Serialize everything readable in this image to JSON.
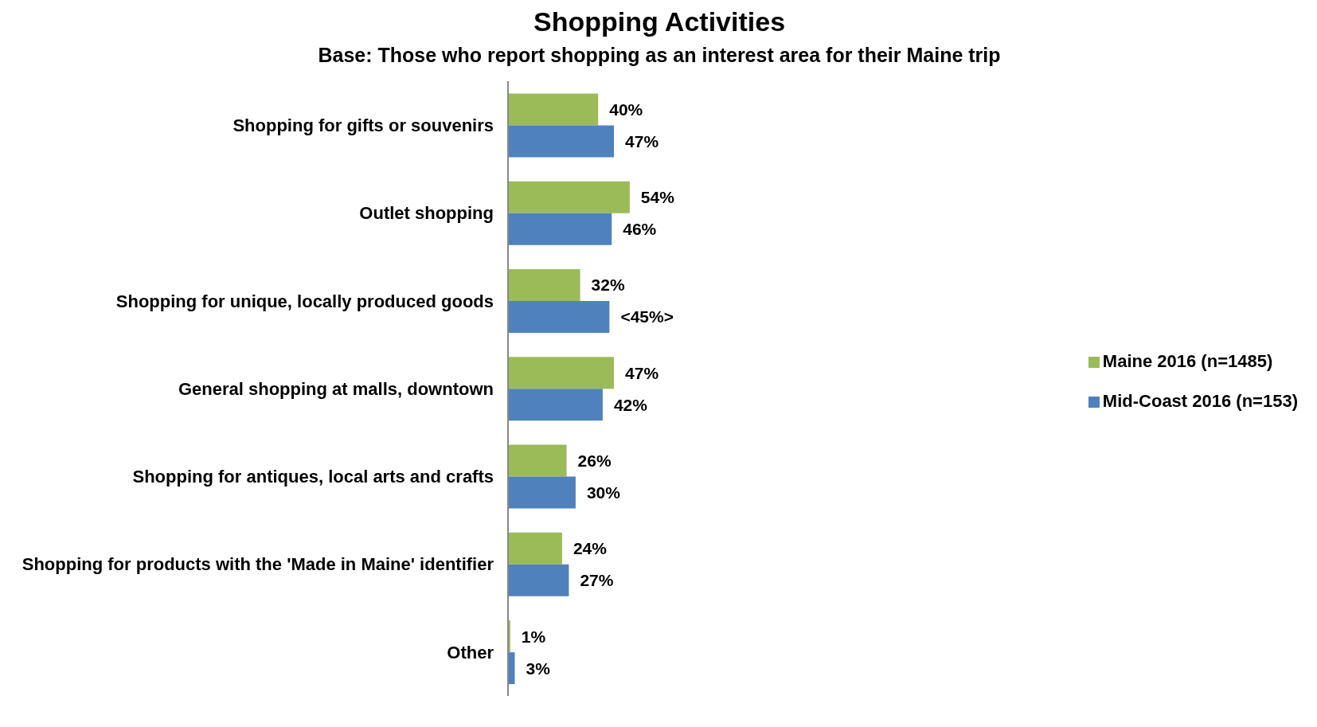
{
  "chart_data": {
    "type": "bar",
    "orientation": "horizontal",
    "title": "Shopping Activities",
    "subtitle": "Base: Those who report shopping as an interest area for their Maine trip",
    "categories": [
      "Shopping for gifts or souvenirs",
      "Outlet shopping",
      "Shopping for unique, locally produced goods",
      "General shopping at malls, downtown",
      "Shopping for antiques, local arts and crafts",
      "Shopping for products with the 'Made in Maine' identifier",
      "Other"
    ],
    "series": [
      {
        "name": "Maine 2016 (n=1485)",
        "color": "#9bbb59",
        "values": [
          40,
          54,
          32,
          47,
          26,
          24,
          1
        ],
        "value_labels": [
          "40%",
          "54%",
          "32%",
          "47%",
          "26%",
          "24%",
          "1%"
        ]
      },
      {
        "name": "Mid-Coast 2016 (n=153)",
        "color": "#4f81bd",
        "values": [
          47,
          46,
          45,
          42,
          30,
          27,
          3
        ],
        "value_labels": [
          "47%",
          "46%",
          "<45%>",
          "42%",
          "30%",
          "27%",
          "3%"
        ]
      }
    ],
    "legend": "right",
    "grid": false
  }
}
